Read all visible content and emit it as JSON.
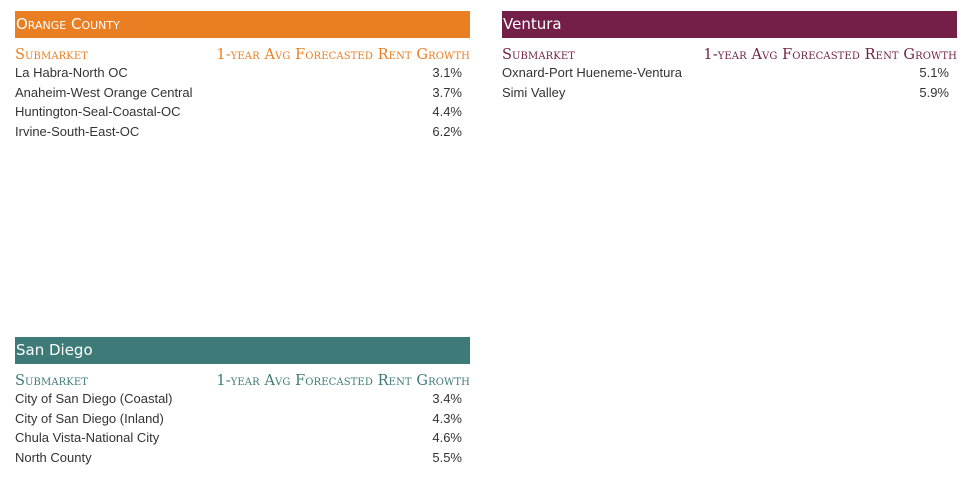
{
  "colors": {
    "orange_county": "#ea7e22",
    "ventura": "#731f47",
    "san_diego": "#3d7a78",
    "text": "#333333"
  },
  "panels": {
    "orange_county": {
      "title": "Orange County",
      "col_submarket": "Submarket",
      "col_growth": "1-year Avg Forecasted Rent Growth",
      "rows": [
        {
          "name": "La Habra-North OC",
          "value": "3.1%"
        },
        {
          "name": "Anaheim-West Orange Central",
          "value": "3.7%"
        },
        {
          "name": "Huntington-Seal-Coastal-OC",
          "value": "4.4%"
        },
        {
          "name": "Irvine-South-East-OC",
          "value": "6.2%"
        }
      ]
    },
    "ventura": {
      "title": "Ventura",
      "col_submarket": "Submarket",
      "col_growth": "1-year Avg Forecasted Rent Growth",
      "rows": [
        {
          "name": "Oxnard-Port Hueneme-Ventura",
          "value": "5.1%"
        },
        {
          "name": "Simi Valley",
          "value": "5.9%"
        }
      ]
    },
    "san_diego": {
      "title": "San Diego",
      "col_submarket": "Submarket",
      "col_growth": "1-year Avg Forecasted Rent Growth",
      "rows": [
        {
          "name": "City of San Diego (Coastal)",
          "value": "3.4%"
        },
        {
          "name": "City of San Diego (Inland)",
          "value": "4.3%"
        },
        {
          "name": "Chula Vista-National City",
          "value": "4.6%"
        },
        {
          "name": "North County",
          "value": "5.5%"
        }
      ]
    }
  }
}
